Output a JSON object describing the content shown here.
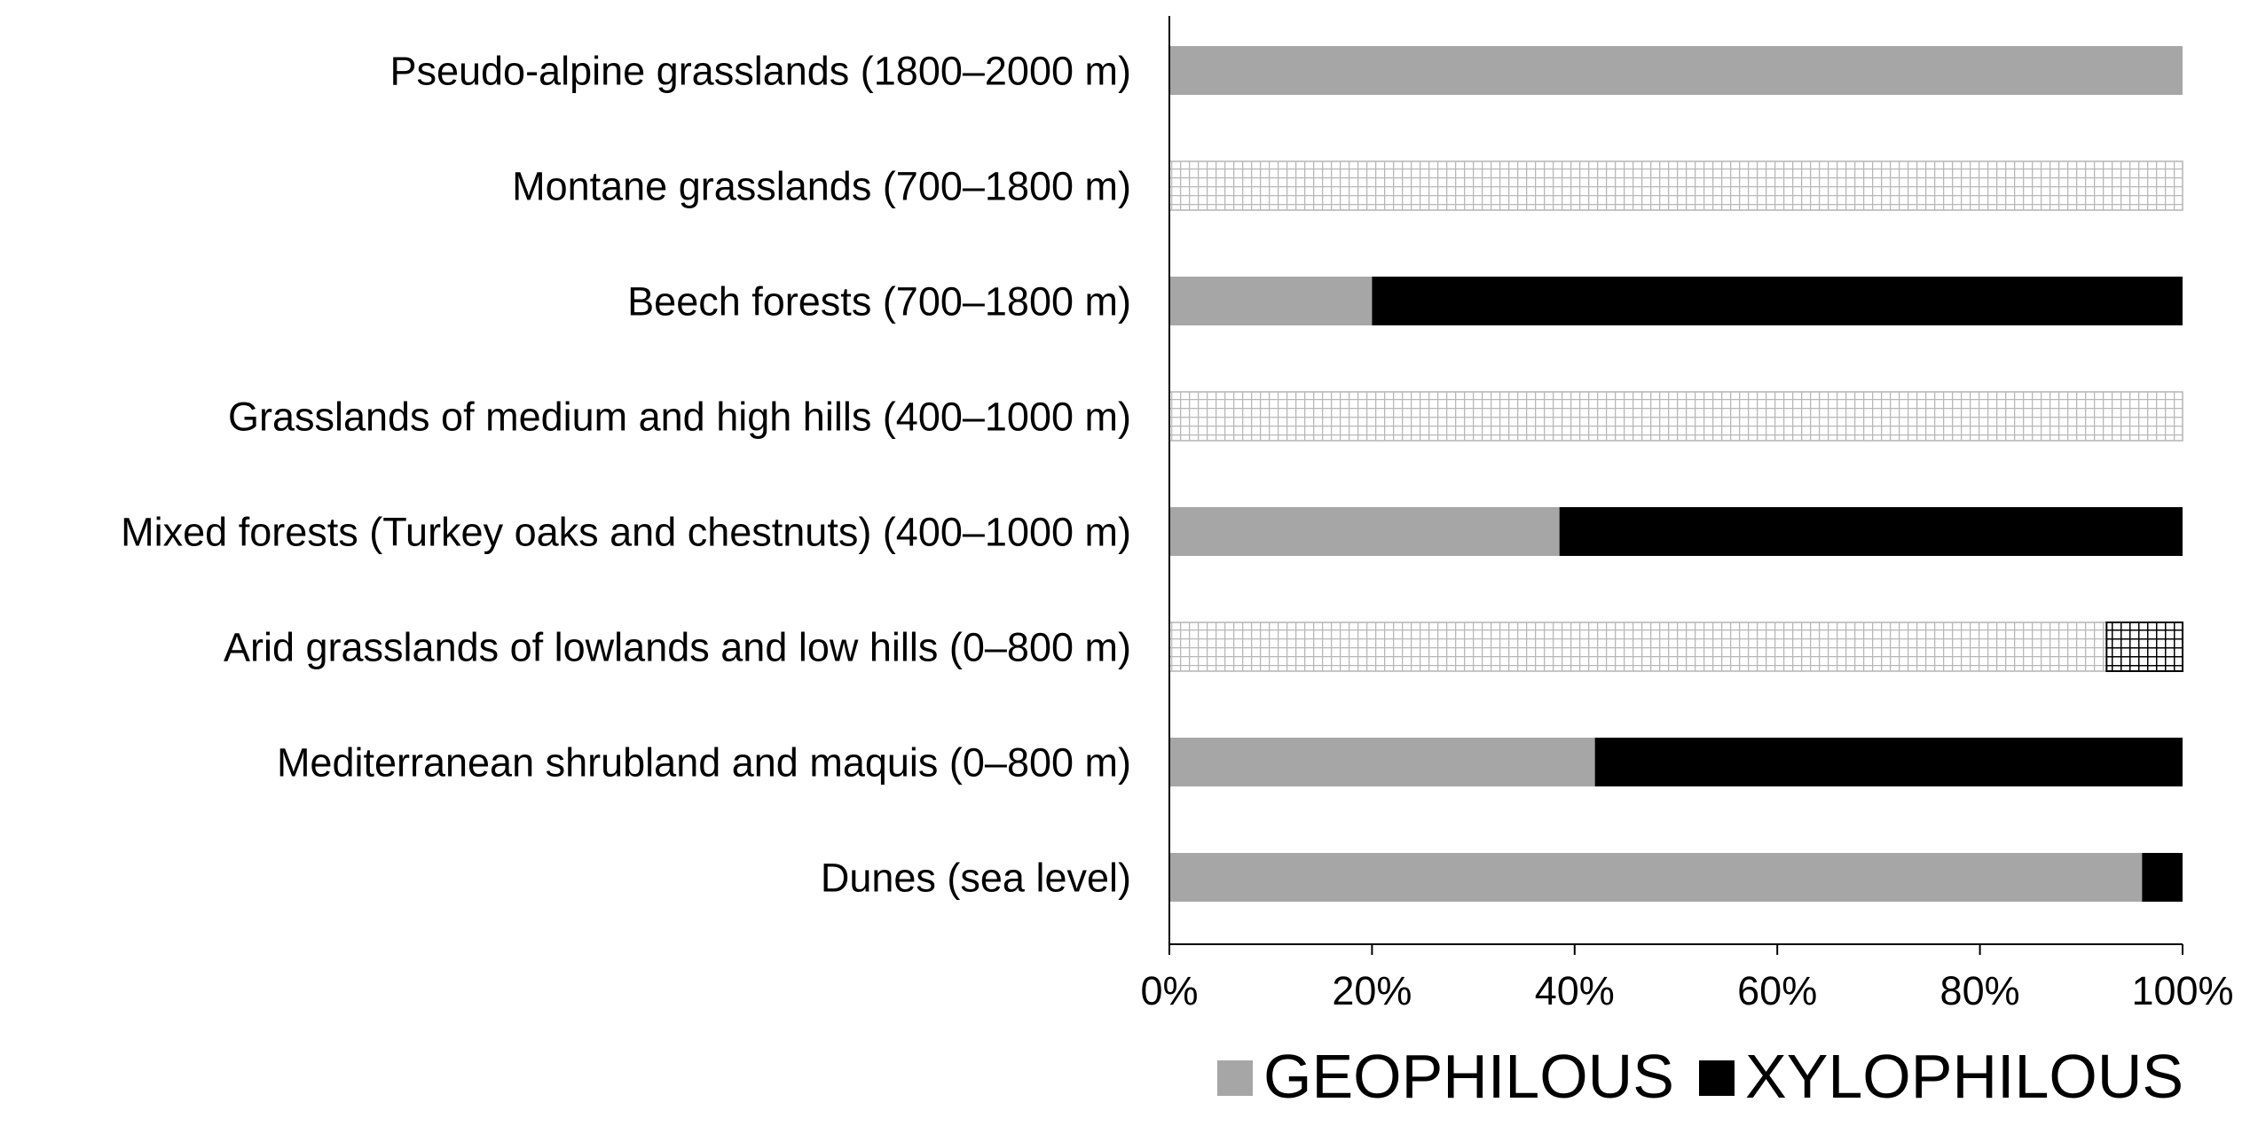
{
  "chart_data": {
    "type": "bar",
    "orientation": "horizontal",
    "stacked": true,
    "percent": true,
    "categories": [
      "Pseudo-alpine grasslands (1800–2000 m)",
      "Montane grasslands (700–1800 m)",
      "Beech forests (700–1800 m)",
      "Grasslands of medium and high hills (400–1000 m)",
      "Mixed forests (Turkey oaks and chestnuts)  (400–1000 m)",
      "Arid grasslands of lowlands and low hills (0–800 m)",
      "Mediterranean shrubland and maquis (0–800 m)",
      "Dunes (sea level)"
    ],
    "category_style": [
      "solid",
      "hatched",
      "solid",
      "hatched",
      "solid",
      "hatched",
      "solid",
      "solid"
    ],
    "series": [
      {
        "name": "GEOPHILOUS",
        "color": "#a6a6a6",
        "values": [
          100,
          100,
          20,
          100,
          38.5,
          92.5,
          42,
          96
        ]
      },
      {
        "name": "XYLOPHILOUS",
        "color": "#000000",
        "values": [
          0,
          0,
          80,
          0,
          61.5,
          7.5,
          58,
          4
        ]
      }
    ],
    "x_ticks": [
      "0%",
      "20%",
      "40%",
      "60%",
      "80%",
      "100%"
    ],
    "xlim": [
      0,
      100
    ],
    "legend_position": "bottom-right",
    "grid": false,
    "title": "",
    "xlabel": "",
    "ylabel": ""
  }
}
